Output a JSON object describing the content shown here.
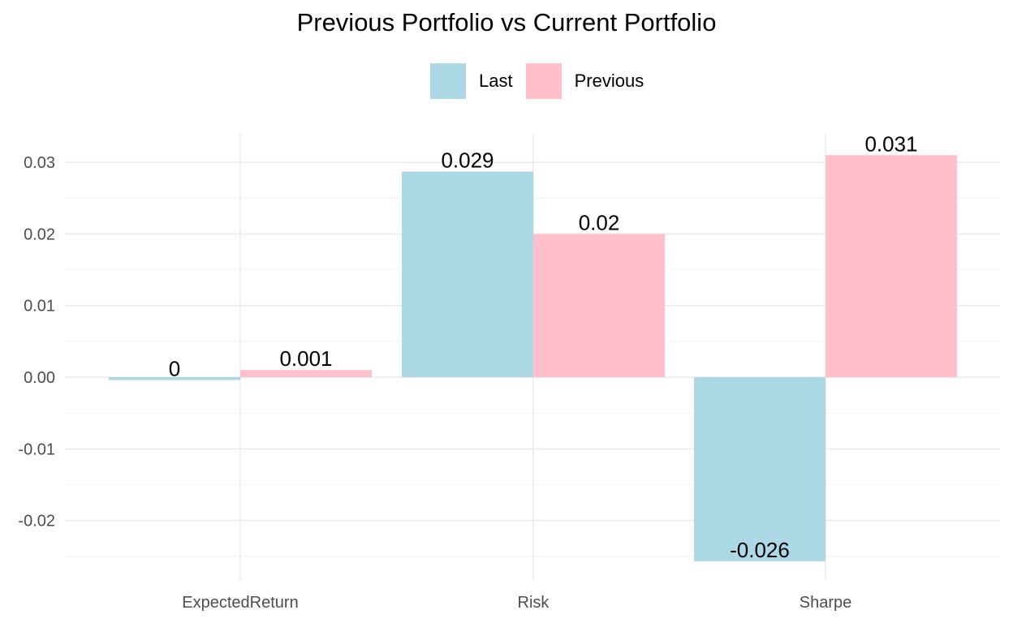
{
  "chart_data": {
    "type": "bar",
    "title": "Previous Portfolio vs Current Portfolio",
    "xlabel": "",
    "ylabel": "",
    "categories": [
      "ExpectedReturn",
      "Risk",
      "Sharpe"
    ],
    "series": [
      {
        "name": "Last",
        "color": "#add8e6",
        "values": [
          -0.0004,
          0.0287,
          -0.0257
        ],
        "labels": [
          "0",
          "0.029",
          "-0.026"
        ]
      },
      {
        "name": "Previous",
        "color": "#ffc0cb",
        "values": [
          0.001,
          0.02,
          0.031
        ],
        "labels": [
          "0.001",
          "0.02",
          "0.031"
        ]
      }
    ],
    "yticks": [
      "-0.02",
      "-0.01",
      "0.00",
      "0.01",
      "0.02",
      "0.03"
    ],
    "ylim": [
      -0.027,
      0.033
    ],
    "legend_position": "top",
    "grid": true
  }
}
